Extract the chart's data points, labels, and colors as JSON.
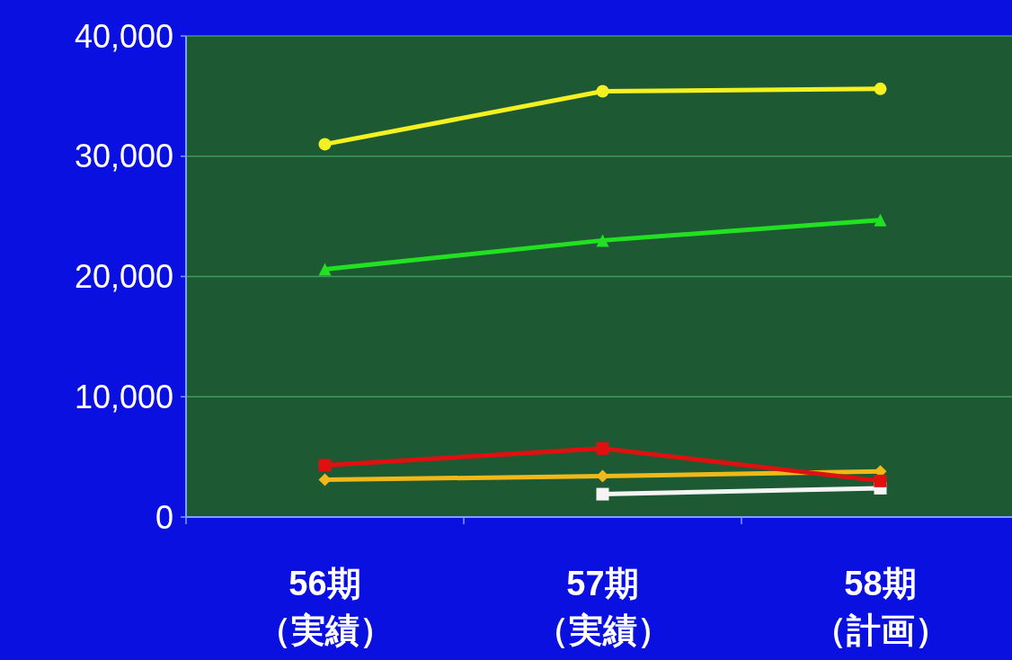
{
  "chart_data": {
    "type": "line",
    "categories": [
      "56期（実績）",
      "57期（実績）",
      "58期（計画）"
    ],
    "series": [
      {
        "color": "#f5f020",
        "marker": "circle",
        "values": [
          31000,
          35400,
          35600
        ]
      },
      {
        "color": "#22e022",
        "marker": "triangle",
        "values": [
          20600,
          23000,
          24700
        ]
      },
      {
        "color": "#e01010",
        "marker": "square",
        "values": [
          4300,
          5700,
          3000
        ]
      },
      {
        "color": "#f0b818",
        "marker": "diamond",
        "values": [
          3100,
          3400,
          3800
        ]
      },
      {
        "color": "#f4f4f4",
        "marker": "square",
        "values": [
          null,
          1900,
          2400
        ]
      }
    ],
    "ylim": [
      0,
      40000
    ],
    "yticks": [
      {
        "value": 0,
        "label": "0"
      },
      {
        "value": 10000,
        "label": "10,000"
      },
      {
        "value": 20000,
        "label": "20,000"
      },
      {
        "value": 30000,
        "label": "30,000"
      },
      {
        "value": 40000,
        "label": "40,000"
      }
    ],
    "grid": "y"
  }
}
